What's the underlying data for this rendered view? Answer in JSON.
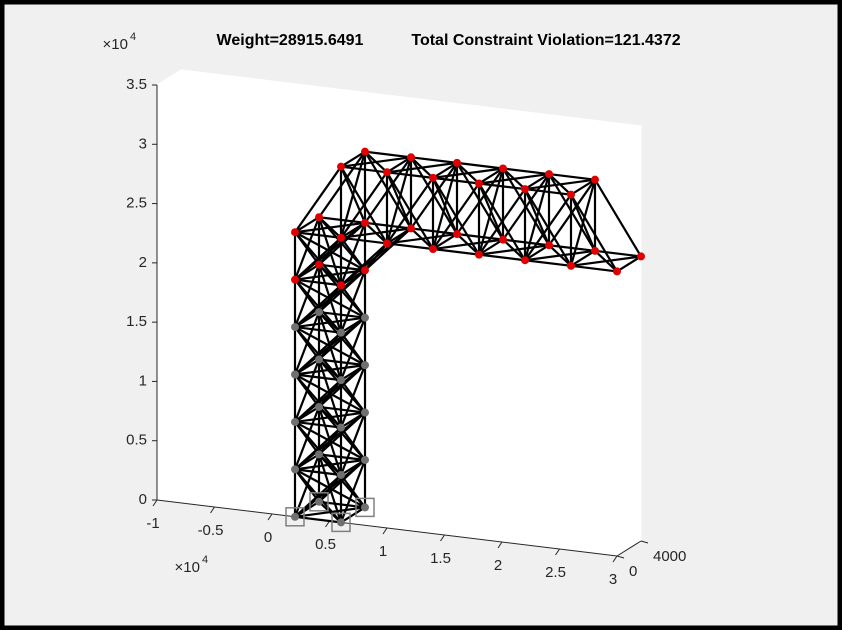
{
  "chart_data": {
    "type": "truss3d",
    "title_weight": "Weight=28915.6491",
    "title_violation": "Total Constraint Violation=121.4372",
    "xlim": [
      -10000,
      30000
    ],
    "xticks": [
      {
        "value": -10000,
        "label": "-1"
      },
      {
        "value": -5000,
        "label": "-0.5"
      },
      0,
      {
        "value": 5000,
        "label": "0.5"
      },
      {
        "value": 10000,
        "label": "1"
      },
      {
        "value": 15000,
        "label": "1.5"
      },
      {
        "value": 20000,
        "label": "2"
      },
      {
        "value": 25000,
        "label": "2.5"
      },
      {
        "value": 30000,
        "label": "3"
      }
    ],
    "x_exponent": {
      "base": "×10",
      "power": "4"
    },
    "ylim": [
      0,
      4000
    ],
    "yticks": [
      0,
      4000
    ],
    "zlim": [
      0,
      35000
    ],
    "zticks": [
      0,
      {
        "value": 5000,
        "label": "0.5"
      },
      {
        "value": 10000,
        "label": "1"
      },
      {
        "value": 15000,
        "label": "1.5"
      },
      {
        "value": 20000,
        "label": "2"
      },
      {
        "value": 25000,
        "label": "2.5"
      },
      {
        "value": 30000,
        "label": "3"
      },
      {
        "value": 35000,
        "label": "3.5"
      }
    ],
    "z_exponent": {
      "base": "×10",
      "power": "4"
    },
    "member_color": "#000000",
    "support_color": "#808080",
    "series": [
      {
        "color": "#e00000",
        "x": [
          2000,
          2000,
          6000,
          6000,
          2000,
          2000,
          6000,
          6000,
          6000,
          6000,
          10000,
          10000,
          14000,
          14000,
          18000,
          18000,
          22000,
          22000,
          26000,
          26000,
          10000,
          10000,
          14000,
          14000,
          18000,
          18000,
          22000,
          22000,
          26000,
          26000,
          30000,
          30000
        ],
        "y": [
          0,
          4000,
          0,
          4000,
          0,
          4000,
          0,
          4000,
          0,
          4000,
          0,
          4000,
          0,
          4000,
          0,
          4000,
          0,
          4000,
          0,
          4000,
          0,
          4000,
          0,
          4000,
          0,
          4000,
          0,
          4000,
          0,
          4000,
          0,
          4000
        ],
        "z": [
          20000,
          20000,
          20000,
          20000,
          24000,
          24000,
          24000,
          24000,
          30000,
          30000,
          30000,
          30000,
          30000,
          30000,
          30000,
          30000,
          30000,
          30000,
          30000,
          30000,
          24000,
          24000,
          24000,
          24000,
          24000,
          24000,
          24000,
          24000,
          24000,
          24000,
          24000,
          24000
        ]
      },
      {
        "color": "#707070",
        "x": [
          2000,
          2000,
          6000,
          6000,
          2000,
          2000,
          6000,
          6000,
          2000,
          2000,
          6000,
          6000,
          2000,
          2000,
          6000,
          6000,
          2000,
          2000,
          6000,
          6000
        ],
        "y": [
          0,
          4000,
          0,
          4000,
          0,
          4000,
          0,
          4000,
          0,
          4000,
          0,
          4000,
          0,
          4000,
          0,
          4000,
          0,
          4000,
          0,
          4000
        ],
        "z": [
          0,
          0,
          0,
          0,
          4000,
          4000,
          4000,
          4000,
          8000,
          8000,
          8000,
          8000,
          12000,
          12000,
          12000,
          12000,
          16000,
          16000,
          16000,
          16000
        ]
      }
    ]
  }
}
